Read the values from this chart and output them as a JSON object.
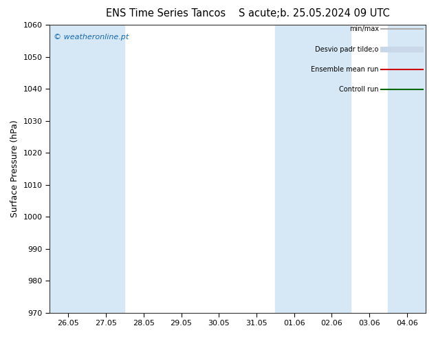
{
  "title_left": "ENS Time Series Tancos",
  "title_right": "S acute;b. 25.05.2024 09 UTC",
  "ylabel": "Surface Pressure (hPa)",
  "ylim": [
    970,
    1060
  ],
  "yticks": [
    970,
    980,
    990,
    1000,
    1010,
    1020,
    1030,
    1040,
    1050,
    1060
  ],
  "x_labels": [
    "26.05",
    "27.05",
    "28.05",
    "29.05",
    "30.05",
    "31.05",
    "01.06",
    "02.06",
    "03.06",
    "04.06"
  ],
  "shaded_indices": [
    0,
    1,
    6,
    7,
    9
  ],
  "shaded_color": "#d6e8f5",
  "background_color": "#ffffff",
  "watermark": "© weatheronline.pt",
  "watermark_color": "#1469b0",
  "legend_entries": [
    {
      "label": "min/max",
      "color": "#aaaaaa",
      "linewidth": 1.5
    },
    {
      "label": "Desvio padr tilde;o",
      "color": "#c8d8e8",
      "linewidth": 6
    },
    {
      "label": "Ensemble mean run",
      "color": "#cc0000",
      "linewidth": 1.5
    },
    {
      "label": "Controll run",
      "color": "#006600",
      "linewidth": 1.5
    }
  ],
  "figsize": [
    6.34,
    4.9
  ],
  "dpi": 100
}
